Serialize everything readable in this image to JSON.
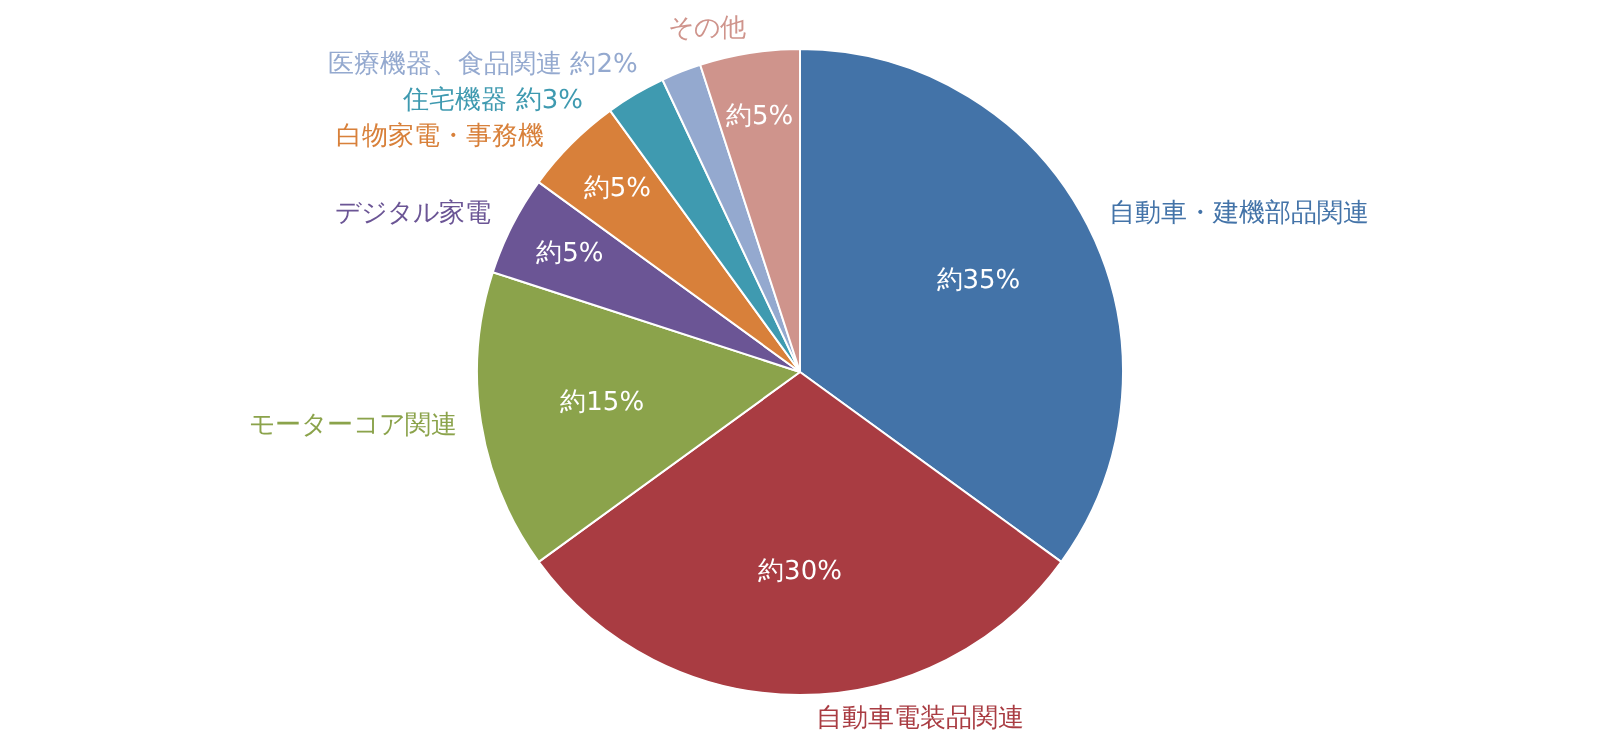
{
  "chart_data": {
    "type": "pie",
    "categories": [
      "自動車・建機部品関連",
      "自動車電装品関連",
      "モーターコア関連",
      "デジタル家電",
      "白物家電・事務機",
      "住宅機器",
      "医療機器、食品関連",
      "その他"
    ],
    "values": [
      35,
      30,
      15,
      5,
      5,
      3,
      2,
      5
    ],
    "colors": [
      "#4373a8",
      "#a93c42",
      "#8ba34b",
      "#6b5595",
      "#d8803a",
      "#3f9ab0",
      "#94a9cf",
      "#cf948c"
    ],
    "value_labels": [
      "約35%",
      "約30%",
      "約15%",
      "約5%",
      "約5%",
      "約3%",
      "約2%",
      "約5%"
    ],
    "legend": false
  }
}
